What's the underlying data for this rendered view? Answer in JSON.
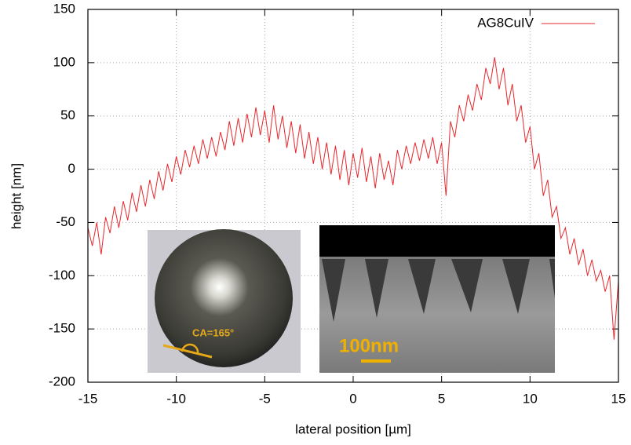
{
  "chart_data": {
    "type": "line",
    "x_label": "lateral position [µm]",
    "y_label": "height [nm]",
    "xlim": [
      -15,
      15
    ],
    "xticks": [
      -15,
      -10,
      -5,
      0,
      5,
      10,
      15
    ],
    "ylim": [
      -200,
      150
    ],
    "yticks": [
      -200,
      -150,
      -100,
      -50,
      0,
      50,
      100,
      150
    ],
    "grid": true,
    "legend": "top-right",
    "annotations": [
      "CA=165°",
      "100nm"
    ],
    "x": [
      -15,
      -14.75,
      -14.5,
      -14.25,
      -14,
      -13.75,
      -13.5,
      -13.25,
      -13,
      -12.75,
      -12.5,
      -12.25,
      -12,
      -11.75,
      -11.5,
      -11.25,
      -11,
      -10.75,
      -10.5,
      -10.25,
      -10,
      -9.75,
      -9.5,
      -9.25,
      -9,
      -8.75,
      -8.5,
      -8.25,
      -8,
      -7.75,
      -7.5,
      -7.25,
      -7,
      -6.75,
      -6.5,
      -6.25,
      -6,
      -5.75,
      -5.5,
      -5.25,
      -5,
      -4.75,
      -4.5,
      -4.25,
      -4,
      -3.75,
      -3.5,
      -3.25,
      -3,
      -2.75,
      -2.5,
      -2.25,
      -2,
      -1.75,
      -1.5,
      -1.25,
      -1,
      -0.75,
      -0.5,
      -0.25,
      0,
      0.25,
      0.5,
      0.75,
      1,
      1.25,
      1.5,
      1.75,
      2,
      2.25,
      2.5,
      2.75,
      3,
      3.25,
      3.5,
      3.75,
      4,
      4.25,
      4.5,
      4.75,
      5,
      5.25,
      5.5,
      5.75,
      6,
      6.25,
      6.5,
      6.75,
      7,
      7.25,
      7.5,
      7.75,
      8,
      8.25,
      8.5,
      8.75,
      9,
      9.25,
      9.5,
      9.75,
      10,
      10.25,
      10.5,
      10.75,
      11,
      11.25,
      11.5,
      11.75,
      12,
      12.25,
      12.5,
      12.75,
      13,
      13.25,
      13.5,
      13.75,
      14,
      14.25,
      14.5,
      14.75,
      15
    ],
    "series": [
      {
        "name": "AG8CuIV",
        "color": "#e8262b",
        "values": [
          -55,
          -72,
          -50,
          -80,
          -45,
          -60,
          -35,
          -55,
          -30,
          -48,
          -22,
          -40,
          -15,
          -35,
          -10,
          -28,
          -2,
          -20,
          5,
          -12,
          12,
          -5,
          18,
          2,
          22,
          5,
          28,
          10,
          30,
          12,
          35,
          18,
          45,
          22,
          48,
          25,
          52,
          30,
          58,
          32,
          55,
          25,
          60,
          28,
          50,
          20,
          45,
          15,
          42,
          10,
          35,
          5,
          30,
          0,
          25,
          -5,
          22,
          -10,
          18,
          -15,
          15,
          -8,
          20,
          -12,
          12,
          -18,
          15,
          -10,
          8,
          -15,
          18,
          0,
          22,
          5,
          25,
          8,
          28,
          10,
          30,
          5,
          25,
          -25,
          45,
          30,
          60,
          45,
          70,
          55,
          80,
          65,
          95,
          80,
          105,
          75,
          95,
          60,
          80,
          45,
          60,
          25,
          40,
          0,
          15,
          -25,
          -10,
          -45,
          -35,
          -65,
          -55,
          -80,
          -65,
          -90,
          -75,
          -100,
          -85,
          -105,
          -95,
          -115,
          -100,
          -160,
          -105
        ]
      }
    ]
  }
}
